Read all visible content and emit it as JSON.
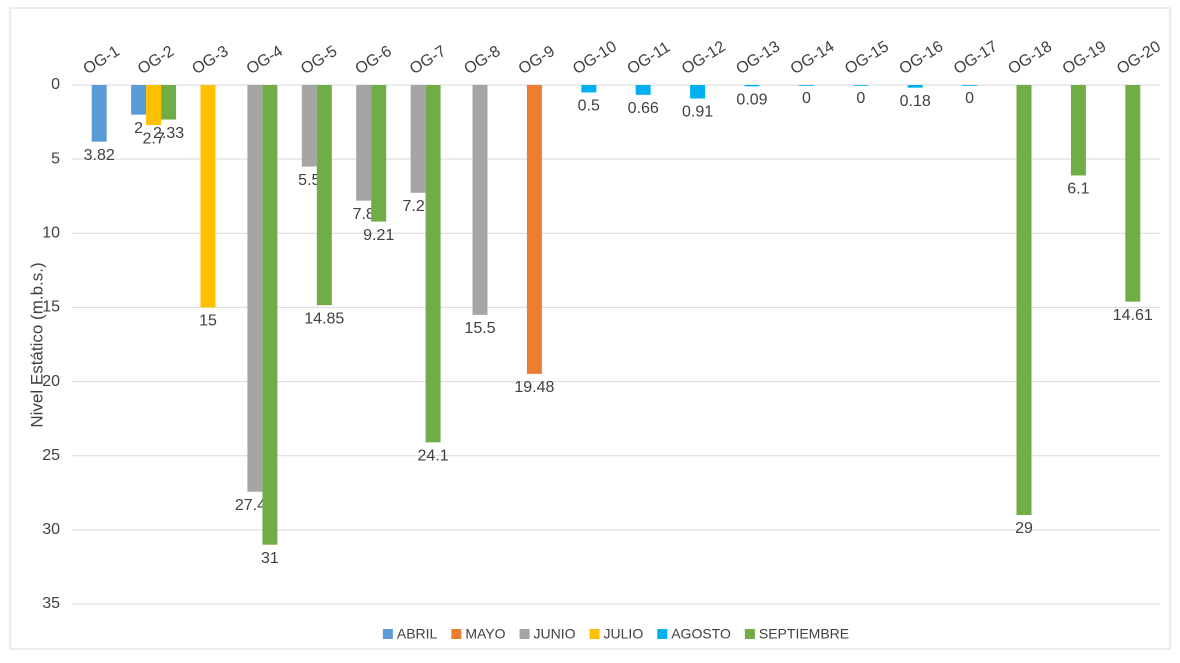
{
  "chart_data": {
    "type": "bar",
    "y_axis_label": "Nivel Estático (m.b.s.)",
    "categories": [
      "OG-1",
      "OG-2",
      "OG-3",
      "OG-4",
      "OG-5",
      "OG-6",
      "OG-7",
      "OG-8",
      "OG-9",
      "OG-10",
      "OG-11",
      "OG-12",
      "OG-13",
      "OG-14",
      "OG-15",
      "OG-16",
      "OG-17",
      "OG-18",
      "OG-19",
      "OG-20"
    ],
    "series": [
      {
        "name": "ABRIL",
        "color": "#5b9bd5",
        "values": [
          3.82,
          2,
          null,
          null,
          null,
          null,
          null,
          null,
          null,
          null,
          null,
          null,
          null,
          null,
          null,
          null,
          null,
          null,
          null,
          null
        ]
      },
      {
        "name": "MAYO",
        "color": "#ed7d31",
        "values": [
          null,
          null,
          null,
          null,
          null,
          null,
          null,
          null,
          19.48,
          null,
          null,
          null,
          null,
          null,
          null,
          null,
          null,
          null,
          null,
          null
        ]
      },
      {
        "name": "JUNIO",
        "color": "#a5a5a5",
        "values": [
          null,
          null,
          null,
          27.43,
          5.5,
          7.8,
          7.27,
          15.5,
          null,
          null,
          null,
          null,
          null,
          null,
          null,
          null,
          null,
          null,
          null,
          null
        ]
      },
      {
        "name": "JULIO",
        "color": "#ffc000",
        "values": [
          null,
          2.7,
          15,
          null,
          null,
          null,
          null,
          null,
          null,
          null,
          null,
          null,
          null,
          null,
          null,
          null,
          null,
          null,
          null,
          null
        ]
      },
      {
        "name": "AGOSTO",
        "color": "#00b0f0",
        "values": [
          null,
          null,
          null,
          null,
          null,
          null,
          null,
          null,
          null,
          0.5,
          0.66,
          0.91,
          0.09,
          0,
          0,
          0.18,
          0,
          null,
          null,
          null
        ]
      },
      {
        "name": "SEPTIEMBRE",
        "color": "#70ad47",
        "values": [
          null,
          2.33,
          null,
          31,
          14.85,
          9.21,
          24.1,
          null,
          null,
          null,
          null,
          null,
          null,
          null,
          null,
          null,
          null,
          29,
          6.1,
          14.61
        ]
      }
    ],
    "ylim": [
      0,
      35
    ],
    "yticks": [
      0,
      5,
      10,
      15,
      20,
      25,
      30,
      35
    ],
    "y_inverted": true,
    "grid": true,
    "legend": "bottom"
  }
}
